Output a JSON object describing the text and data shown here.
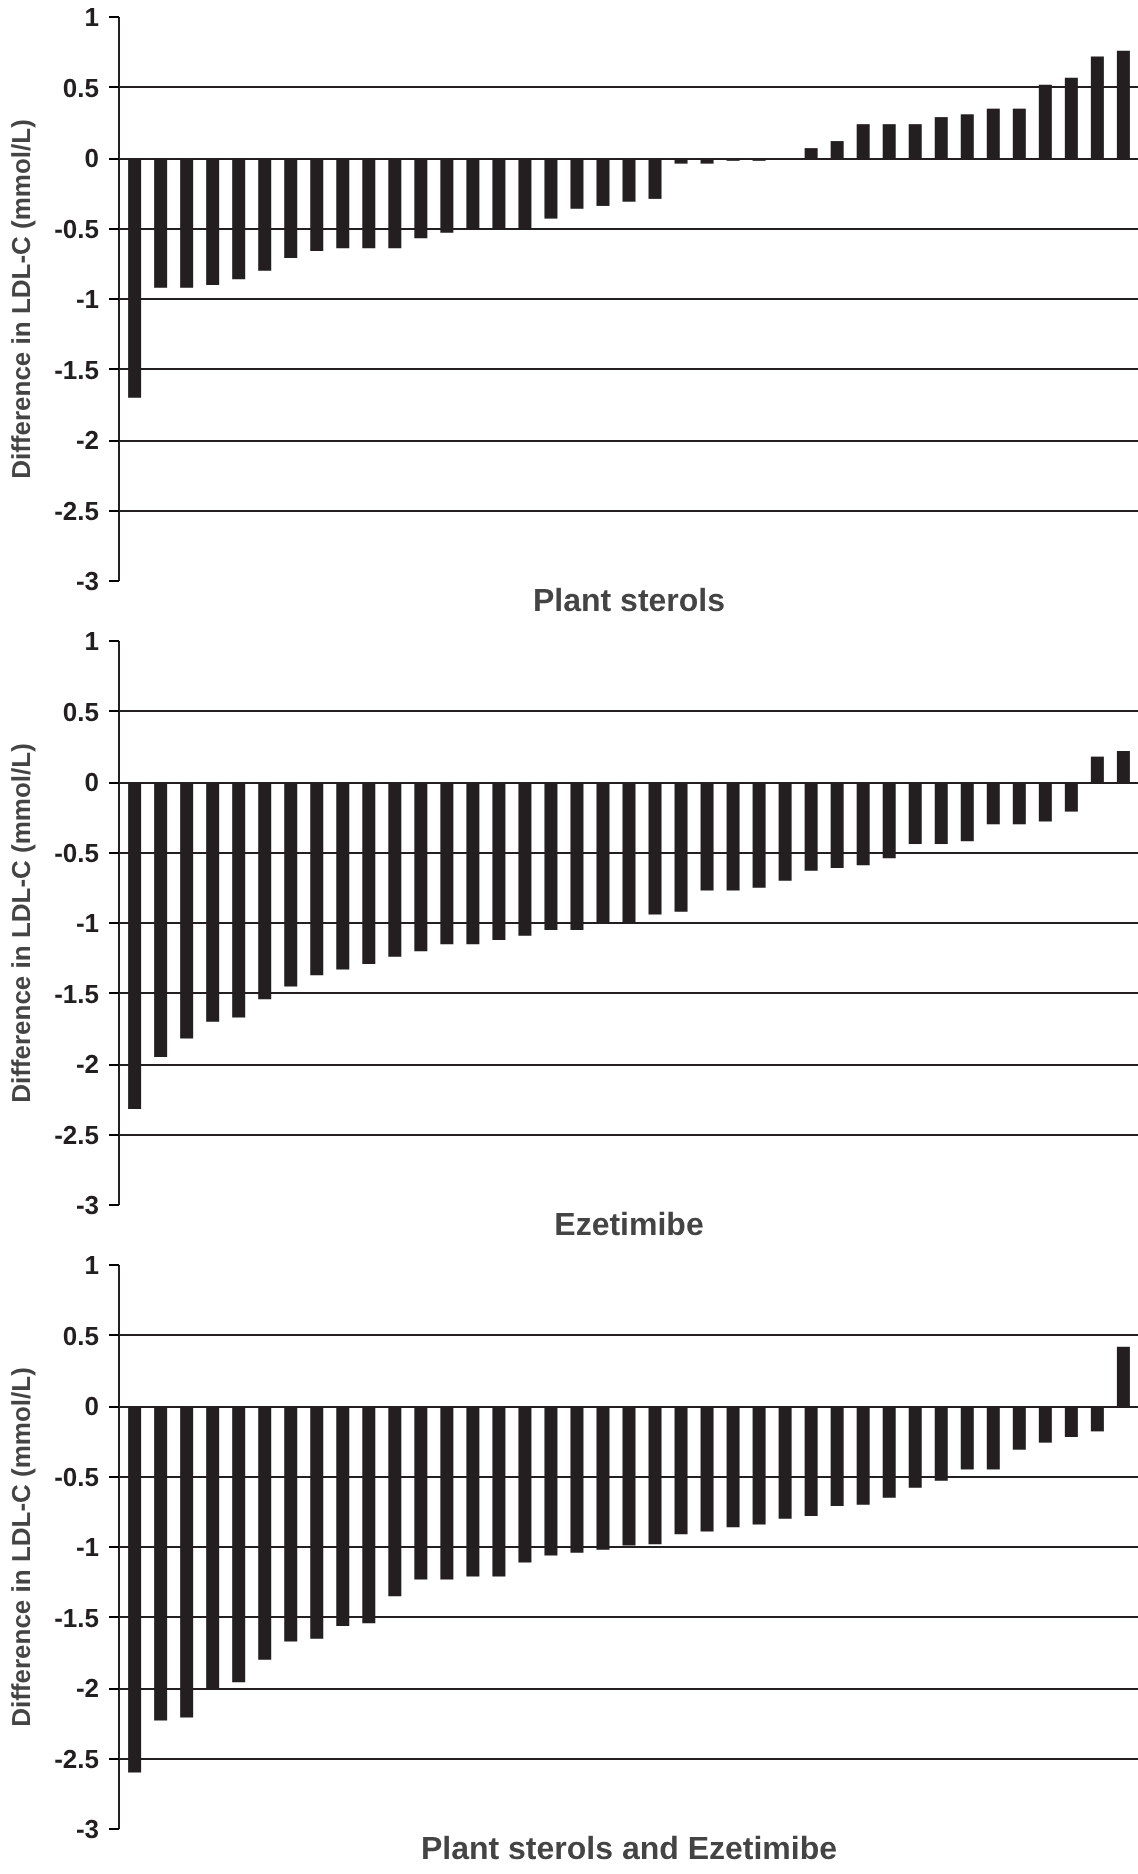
{
  "chart_data": [
    {
      "type": "bar",
      "xlabel": "Plant sterols",
      "ylabel": "Difference in LDL-C (mmol/L)",
      "categories": [
        null,
        null,
        null,
        null,
        null,
        null,
        null,
        null,
        null,
        null,
        null,
        null,
        null,
        null,
        null,
        null,
        null,
        null,
        null,
        null,
        null,
        null,
        null,
        null,
        null,
        null,
        null,
        null,
        null,
        null,
        null,
        null,
        null,
        null,
        null,
        null,
        null,
        null,
        null
      ],
      "color": "#231f20",
      "values": [
        -1.7,
        -0.92,
        -0.92,
        -0.9,
        -0.86,
        -0.8,
        -0.71,
        -0.66,
        -0.64,
        -0.64,
        -0.64,
        -0.57,
        -0.53,
        -0.5,
        -0.5,
        -0.5,
        -0.43,
        -0.36,
        -0.34,
        -0.31,
        -0.29,
        -0.04,
        -0.04,
        -0.02,
        -0.02,
        0,
        0.07,
        0.12,
        0.24,
        0.24,
        0.24,
        0.29,
        0.31,
        0.35,
        0.35,
        0.52,
        0.57,
        0.72,
        0.76
      ],
      "ylim": [
        -3,
        1
      ],
      "yticks": [
        -3,
        -2.5,
        -2,
        -1.5,
        -1,
        -0.5,
        0,
        0.5,
        1
      ],
      "grid": "y",
      "tick_labels": "y"
    },
    {
      "type": "bar",
      "xlabel": "Ezetimibe",
      "ylabel": "Difference in LDL-C (mmol/L)",
      "categories": [
        null,
        null,
        null,
        null,
        null,
        null,
        null,
        null,
        null,
        null,
        null,
        null,
        null,
        null,
        null,
        null,
        null,
        null,
        null,
        null,
        null,
        null,
        null,
        null,
        null,
        null,
        null,
        null,
        null,
        null,
        null,
        null,
        null,
        null,
        null,
        null,
        null,
        null,
        null
      ],
      "color": "#231f20",
      "values": [
        -2.32,
        -1.95,
        -1.82,
        -1.7,
        -1.67,
        -1.54,
        -1.45,
        -1.37,
        -1.33,
        -1.29,
        -1.24,
        -1.2,
        -1.15,
        -1.15,
        -1.12,
        -1.09,
        -1.05,
        -1.05,
        -1.0,
        -1.0,
        -0.94,
        -0.92,
        -0.77,
        -0.77,
        -0.75,
        -0.7,
        -0.63,
        -0.61,
        -0.59,
        -0.54,
        -0.44,
        -0.44,
        -0.42,
        -0.3,
        -0.3,
        -0.28,
        -0.21,
        0.18,
        0.22
      ],
      "ylim": [
        -3,
        1
      ],
      "yticks": [
        -3,
        -2.5,
        -2,
        -1.5,
        -1,
        -0.5,
        0,
        0.5,
        1
      ],
      "grid": "y",
      "tick_labels": "y"
    },
    {
      "type": "bar",
      "xlabel": "Plant sterols and Ezetimibe",
      "ylabel": "Difference in LDL-C (mmol/L)",
      "categories": [
        null,
        null,
        null,
        null,
        null,
        null,
        null,
        null,
        null,
        null,
        null,
        null,
        null,
        null,
        null,
        null,
        null,
        null,
        null,
        null,
        null,
        null,
        null,
        null,
        null,
        null,
        null,
        null,
        null,
        null,
        null,
        null,
        null,
        null,
        null,
        null,
        null,
        null,
        null
      ],
      "color": "#231f20",
      "values": [
        -2.6,
        -2.23,
        -2.21,
        -2.0,
        -1.96,
        -1.8,
        -1.67,
        -1.65,
        -1.56,
        -1.54,
        -1.35,
        -1.23,
        -1.23,
        -1.21,
        -1.21,
        -1.11,
        -1.06,
        -1.04,
        -1.02,
        -0.99,
        -0.98,
        -0.91,
        -0.89,
        -0.86,
        -0.84,
        -0.8,
        -0.78,
        -0.71,
        -0.7,
        -0.65,
        -0.58,
        -0.53,
        -0.45,
        -0.45,
        -0.31,
        -0.26,
        -0.22,
        -0.18,
        0.42
      ],
      "ylim": [
        -3,
        1
      ],
      "yticks": [
        -3,
        -2.5,
        -2,
        -1.5,
        -1,
        -0.5,
        0,
        0.5,
        1
      ],
      "grid": "y",
      "tick_labels": "y"
    }
  ]
}
